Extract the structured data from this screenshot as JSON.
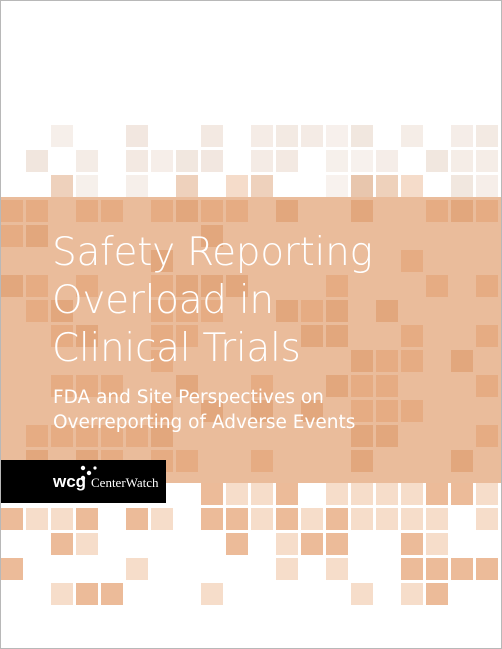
{
  "cover": {
    "title_lines": [
      "Safety Reporting",
      "Overload in",
      "Clinical Trials"
    ],
    "subtitle_lines": [
      "FDA and Site Perspectives on",
      "Overreporting of Adverse Events"
    ],
    "logo": {
      "brand": "wcg",
      "name": "CenterWatch"
    }
  }
}
